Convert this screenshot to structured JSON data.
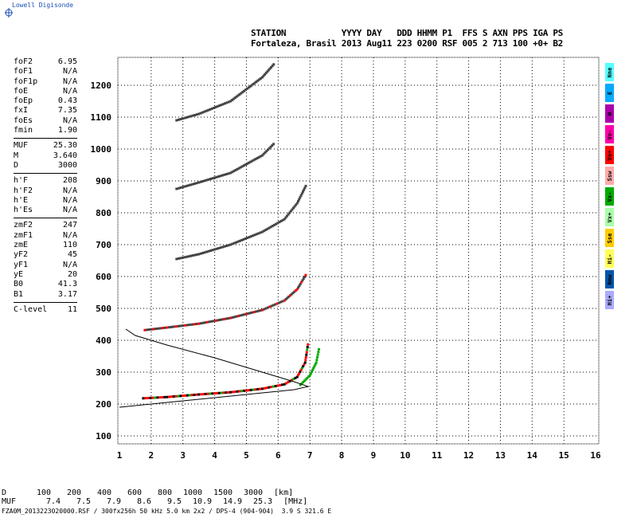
{
  "header": {
    "brand": "Lowell Digisonde",
    "line1": "STATION           YYYY DAY   DDD HHMM P1  FFS S AXN PPS IGA PS",
    "line2": "Fortaleza, Brasil 2013 Aug11 223 0200 RSF 005 2 713 100 +0+ B2"
  },
  "params": [
    [
      {
        "k": "foF2",
        "v": "6.95"
      },
      {
        "k": "foF1",
        "v": "N/A"
      },
      {
        "k": "foF1p",
        "v": "N/A"
      },
      {
        "k": "foE",
        "v": "N/A"
      },
      {
        "k": "foEp",
        "v": "0.43"
      },
      {
        "k": "fxI",
        "v": "7.35"
      },
      {
        "k": "foEs",
        "v": "N/A"
      },
      {
        "k": "fmin",
        "v": "1.90"
      }
    ],
    [
      {
        "k": "MUF",
        "v": "25.30"
      },
      {
        "k": "M",
        "v": "3.640"
      },
      {
        "k": "D",
        "v": "3000"
      }
    ],
    [
      {
        "k": "h'F",
        "v": "208"
      },
      {
        "k": "h'F2",
        "v": "N/A"
      },
      {
        "k": "h'E",
        "v": "N/A"
      },
      {
        "k": "h'Es",
        "v": "N/A"
      }
    ],
    [
      {
        "k": "zmF2",
        "v": "247"
      },
      {
        "k": "zmF1",
        "v": "N/A"
      },
      {
        "k": "zmE",
        "v": "110"
      },
      {
        "k": "yF2",
        "v": "45"
      },
      {
        "k": "yF1",
        "v": "N/A"
      },
      {
        "k": "yE",
        "v": "20"
      },
      {
        "k": "B0",
        "v": "41.3"
      },
      {
        "k": "B1",
        "v": "3.17"
      }
    ],
    [
      {
        "k": "C-level",
        "v": "11"
      }
    ]
  ],
  "legend": [
    {
      "label": "Nne",
      "color": "#55ffff"
    },
    {
      "label": "E",
      "color": "#00aaff"
    },
    {
      "label": "W",
      "color": "#aa00aa"
    },
    {
      "label": "Vo-",
      "color": "#ff00aa"
    },
    {
      "label": "Vo+",
      "color": "#ff0000"
    },
    {
      "label": "Ssw",
      "color": "#ffaaaa"
    },
    {
      "label": "Vx-",
      "color": "#00aa00"
    },
    {
      "label": "Vx+",
      "color": "#aaffaa"
    },
    {
      "label": "Sse",
      "color": "#ffcc00"
    },
    {
      "label": "Hi-",
      "color": "#ffff55"
    },
    {
      "label": "Nnw",
      "color": "#0055aa"
    },
    {
      "label": "Hi+",
      "color": "#aaaaff"
    }
  ],
  "muf_table": {
    "d_label": "D",
    "d": [
      "100",
      "200",
      "400",
      "600",
      "800",
      "1000",
      "1500",
      "3000"
    ],
    "d_unit": "[km]",
    "muf_label": "MUF",
    "muf": [
      "7.4",
      "7.5",
      "7.9",
      "8.6",
      "9.5",
      "10.9",
      "14.9",
      "25.3"
    ],
    "muf_unit": "[MHz]"
  },
  "footer": "FZA0M_2013223020000.RSF / 300fx256h 50 kHz 5.0 km 2x2 / DPS-4 (904-904)  3.9 S 321.6 E",
  "chart_data": {
    "type": "scatter",
    "xlabel": "",
    "ylabel": "",
    "xlim": [
      1,
      16
    ],
    "ylim": [
      75,
      1290
    ],
    "xticks": [
      "1",
      "2",
      "3",
      "4",
      "5",
      "6",
      "7",
      "8",
      "9",
      "10",
      "11",
      "12",
      "13",
      "14",
      "15",
      "16"
    ],
    "yticks": [
      "100",
      "200",
      "300",
      "400",
      "500",
      "600",
      "700",
      "800",
      "900",
      "1000",
      "1100",
      "1200"
    ],
    "grid": true,
    "series": [
      {
        "name": "O-trace 1st hop",
        "color": "#ff0000",
        "points": [
          [
            1.75,
            218
          ],
          [
            2.5,
            222
          ],
          [
            3.5,
            230
          ],
          [
            4.5,
            237
          ],
          [
            5.5,
            248
          ],
          [
            6.2,
            262
          ],
          [
            6.6,
            285
          ],
          [
            6.85,
            330
          ],
          [
            6.95,
            395
          ]
        ]
      },
      {
        "name": "X-trace",
        "color": "#00aa00",
        "points": [
          [
            6.7,
            260
          ],
          [
            7.0,
            290
          ],
          [
            7.2,
            330
          ],
          [
            7.3,
            380
          ]
        ]
      },
      {
        "name": "O-trace 2nd hop",
        "color": "#444444",
        "points": [
          [
            1.8,
            432
          ],
          [
            2.5,
            440
          ],
          [
            3.5,
            452
          ],
          [
            4.5,
            470
          ],
          [
            5.5,
            495
          ],
          [
            6.2,
            525
          ],
          [
            6.6,
            560
          ],
          [
            6.9,
            610
          ]
        ]
      },
      {
        "name": "O-trace 3rd hop",
        "color": "#444444",
        "points": [
          [
            2.8,
            655
          ],
          [
            3.5,
            670
          ],
          [
            4.5,
            700
          ],
          [
            5.5,
            740
          ],
          [
            6.2,
            780
          ],
          [
            6.6,
            830
          ],
          [
            6.9,
            890
          ]
        ]
      },
      {
        "name": "O-trace 4th hop",
        "color": "#444444",
        "points": [
          [
            2.8,
            875
          ],
          [
            3.5,
            895
          ],
          [
            4.5,
            925
          ],
          [
            5.5,
            980
          ],
          [
            5.9,
            1020
          ]
        ]
      },
      {
        "name": "O-trace 5th hop",
        "color": "#444444",
        "points": [
          [
            2.8,
            1090
          ],
          [
            3.5,
            1110
          ],
          [
            4.5,
            1150
          ],
          [
            5.5,
            1225
          ],
          [
            5.9,
            1270
          ]
        ]
      },
      {
        "name": "Profile",
        "color": "#000000",
        "points": [
          [
            1,
            190
          ],
          [
            3,
            210
          ],
          [
            5,
            230
          ],
          [
            6.5,
            245
          ],
          [
            6.95,
            255
          ],
          [
            6.5,
            270
          ],
          [
            5.5,
            300
          ],
          [
            4,
            345
          ],
          [
            2.5,
            385
          ],
          [
            1.5,
            415
          ],
          [
            1.2,
            435
          ]
        ]
      }
    ]
  }
}
